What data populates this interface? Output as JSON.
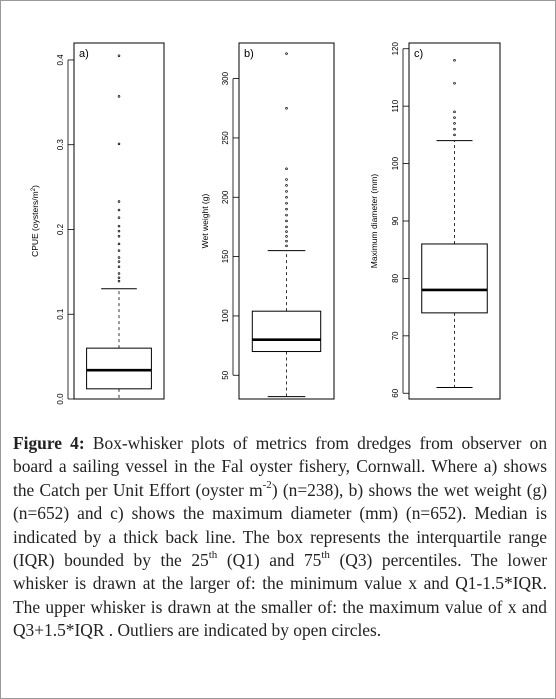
{
  "chart_data": [
    {
      "type": "boxplot",
      "panel_label": "a)",
      "ylabel_main": "CPUE (oysters/m",
      "ylabel_sup": "2",
      "ylabel_tail": ")",
      "ylim": [
        0,
        0.42
      ],
      "yticks": [
        0.0,
        0.1,
        0.2,
        0.3,
        0.4
      ],
      "ytick_labels": [
        "0.0",
        "0.1",
        "0.2",
        "0.3",
        "0.4"
      ],
      "stats": {
        "min": 0.0,
        "q1": 0.012,
        "median": 0.034,
        "q3": 0.06,
        "upper_whisker": 0.13
      },
      "outliers": [
        0.139,
        0.143,
        0.148,
        0.156,
        0.162,
        0.167,
        0.175,
        0.183,
        0.192,
        0.198,
        0.204,
        0.214,
        0.223,
        0.233,
        0.301,
        0.357,
        0.405
      ]
    },
    {
      "type": "boxplot",
      "panel_label": "b)",
      "ylabel_main": "Wet weight (g)",
      "ylim": [
        30,
        330
      ],
      "yticks": [
        50,
        100,
        150,
        200,
        250,
        300
      ],
      "ytick_labels": [
        "50",
        "100",
        "150",
        "200",
        "250",
        "300"
      ],
      "stats": {
        "min": 32,
        "q1": 70,
        "median": 80,
        "q3": 104,
        "upper_whisker": 155
      },
      "outliers": [
        159,
        163,
        167,
        171,
        175,
        180,
        185,
        190,
        195,
        200,
        205,
        210,
        215,
        224,
        275,
        321
      ]
    },
    {
      "type": "boxplot",
      "panel_label": "c)",
      "ylabel_main": "Maximum diameter (mm)",
      "ylim": [
        59,
        121
      ],
      "yticks": [
        60,
        70,
        80,
        90,
        100,
        110,
        120
      ],
      "ytick_labels": [
        "60",
        "70",
        "80",
        "90",
        "100",
        "110",
        "120"
      ],
      "stats": {
        "min": 61,
        "q1": 74,
        "median": 78,
        "q3": 86,
        "upper_whisker": 104
      },
      "outliers": [
        105,
        106,
        107,
        108,
        109,
        114,
        118
      ]
    }
  ],
  "caption": {
    "label": "Figure 4:",
    "part1": " Box-whisker plots of metrics from dredges from observer on board a sailing vessel in the Fal oyster fishery, Cornwall. Where a) shows the Catch per Unit Effort (oyster m",
    "sup1": "-2",
    "part2": ") (n=238), b) shows the wet weight (g) (n=652) and c) shows the maximum diameter (mm) (n=652). Median is indicated by a thick back line. The box represents the interquartile range (IQR) bounded by the 25",
    "sup2": "th",
    "part3": " (Q1) and 75",
    "sup3": "th",
    "part4": " (Q3) percentiles. The lower whisker is drawn at the larger of: the minimum value x and Q1-1.5*IQR. The upper whisker is drawn at the smaller of: the maximum value of x and Q3+1.5*IQR . Outliers are indicated by open circles."
  }
}
